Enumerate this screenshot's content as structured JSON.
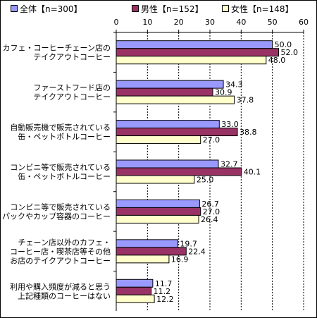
{
  "chart_data": {
    "type": "bar",
    "orientation": "horizontal",
    "title": "",
    "xlabel": "",
    "ylabel": "",
    "xlim": [
      0,
      60
    ],
    "ticks": [
      0,
      10,
      20,
      30,
      40,
      50,
      60
    ],
    "grid": true,
    "legend_position": "top",
    "categories": [
      [
        "カフェ・コーヒーチェーン店の",
        "テイクアウトコーヒー"
      ],
      [
        "ファーストフード店の",
        "テイクアウトコーヒー"
      ],
      [
        "自動販売機で販売されている",
        "缶・ペットボトルコーヒー"
      ],
      [
        "コンビニ等で販売されている",
        "缶・ペットボトルコーヒー"
      ],
      [
        "コンビニ等で販売されている",
        "パックやカップ容器のコーヒー"
      ],
      [
        "チェーン店以外のカフェ・",
        "コーヒー店・喫茶店等その他",
        "お店のテイクアウトコーヒー"
      ],
      [
        "利用や購入頻度が減ると思う",
        "上記種類のコーヒーはない"
      ]
    ],
    "series": [
      {
        "name": "全体【n=300】",
        "color": "#9999ff",
        "values": [
          50.0,
          34.3,
          33.0,
          32.7,
          26.7,
          19.7,
          11.7
        ]
      },
      {
        "name": "男性【n=152】",
        "color": "#993366",
        "values": [
          52.0,
          30.9,
          38.8,
          40.1,
          27.0,
          22.4,
          11.2
        ]
      },
      {
        "name": "女性【n=148】",
        "color": "#ffffcc",
        "values": [
          48.0,
          37.8,
          27.0,
          25.0,
          26.4,
          16.9,
          12.2
        ]
      }
    ]
  }
}
